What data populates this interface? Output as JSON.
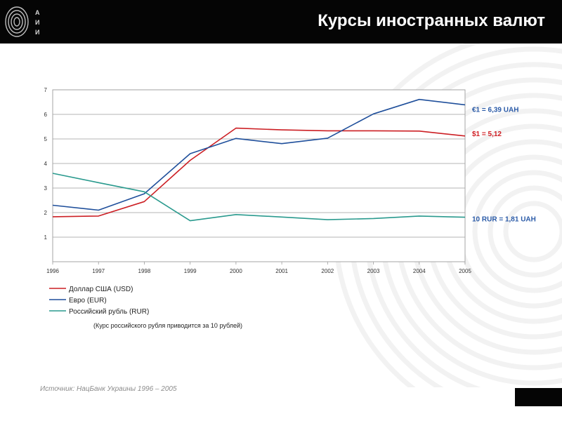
{
  "header": {
    "title": "Курсы иностранных валют"
  },
  "logo": {
    "letters": [
      "А",
      "И",
      "И"
    ]
  },
  "chart_data": {
    "type": "line",
    "x": [
      "1996",
      "1997",
      "1998",
      "1999",
      "2000",
      "2001",
      "2002",
      "2003",
      "2004",
      "2005"
    ],
    "ylim": [
      0,
      7
    ],
    "yticks": [
      "1",
      "2",
      "3",
      "4",
      "5",
      "6",
      "7"
    ],
    "grid": true,
    "series": [
      {
        "name": "Доллар США (USD)",
        "color": "#cc1f24",
        "values": [
          1.83,
          1.86,
          2.45,
          4.13,
          5.44,
          5.37,
          5.33,
          5.33,
          5.32,
          5.12
        ]
      },
      {
        "name": "Евро (EUR)",
        "color": "#1f4f9b",
        "values": [
          2.3,
          2.1,
          2.77,
          4.4,
          5.02,
          4.81,
          5.03,
          6.02,
          6.61,
          6.39
        ]
      },
      {
        "name": "Российский рубль (RUR)",
        "color": "#2a9a8e",
        "values": [
          3.6,
          3.22,
          2.85,
          1.67,
          1.92,
          1.82,
          1.71,
          1.76,
          1.86,
          1.81
        ]
      }
    ],
    "legend_position": "bottom-left",
    "annotations": [
      {
        "text": "€1 = 6,39 UAH",
        "color": "#2b5ba8"
      },
      {
        "text": "$1 = 5,12",
        "color": "#d11f24"
      },
      {
        "text": "10 RUR = 1,81 UAH",
        "color": "#2b5ba8"
      }
    ],
    "note": "(Курс российского рубля приводится за 10 рублей)"
  },
  "source": "Источник: НацБанк Украины 1996 – 2005"
}
